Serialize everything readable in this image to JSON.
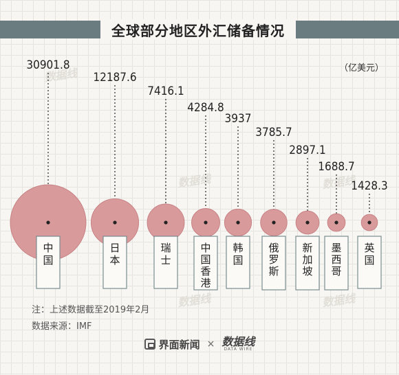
{
  "title": "全球部分地区外汇储备情况",
  "unit": "（亿美元）",
  "note": "注：上述数据截至2019年2月",
  "source": "数据来源：IMF",
  "footer": {
    "brand1": "界面新闻",
    "separator": "×",
    "brand2": "数据线",
    "brand2_sub": "DATA WIRE"
  },
  "watermark": "数据线",
  "colors": {
    "bubble": "#d99a9c",
    "bubble_stroke": "#c78284",
    "dot": "#222222",
    "title_band": "#6b7c80"
  },
  "chart_data": {
    "type": "bubble",
    "title": "全球部分地区外汇储备情况",
    "unit": "（亿美元）",
    "categories": [
      "中国",
      "日本",
      "瑞士",
      "中国香港",
      "韩国",
      "俄罗斯",
      "新加坡",
      "墨西哥",
      "英国"
    ],
    "values": [
      30901.8,
      12187.6,
      7416.1,
      4284.8,
      3937,
      3785.7,
      2897.1,
      1688.7,
      1428.3
    ],
    "value_labels": [
      "30901.8",
      "12187.6",
      "7416.1",
      "4284.8",
      "3937",
      "3785.7",
      "2897.1",
      "1688.7",
      "1428.3"
    ],
    "category_chars": [
      [
        "中",
        "国"
      ],
      [
        "日",
        "本"
      ],
      [
        "瑞",
        "士"
      ],
      [
        "中",
        "国",
        "香",
        "港"
      ],
      [
        "韩",
        "国"
      ],
      [
        "俄",
        "罗",
        "斯"
      ],
      [
        "新",
        "加",
        "坡"
      ],
      [
        "墨",
        "西",
        "哥"
      ],
      [
        "英",
        "国"
      ]
    ]
  }
}
